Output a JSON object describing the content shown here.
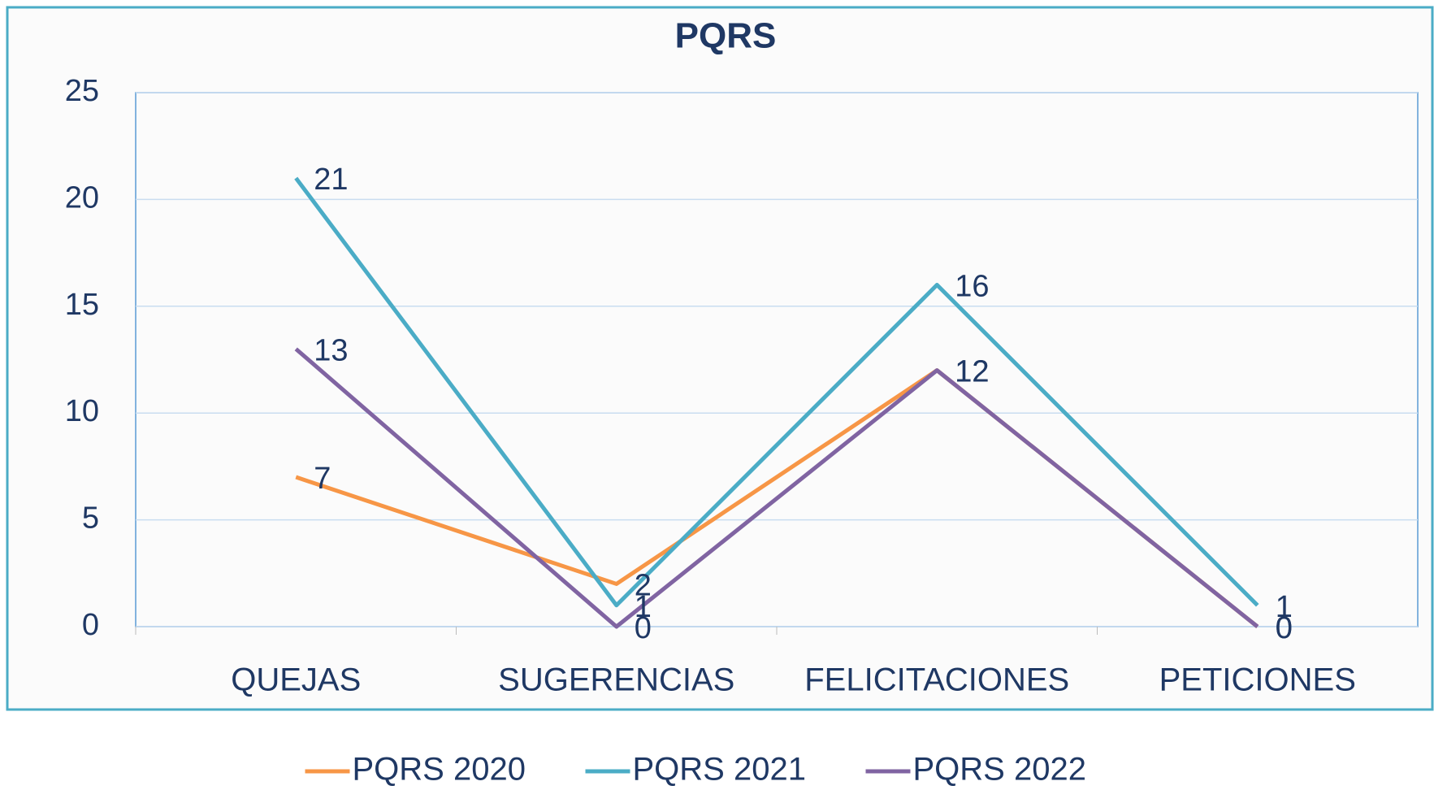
{
  "chart_data": {
    "type": "line",
    "title": "PQRS",
    "categories": [
      "QUEJAS",
      "SUGERENCIAS",
      "FELICITACIONES",
      "PETICIONES"
    ],
    "series": [
      {
        "name": "PQRS 2020",
        "color": "#f79646",
        "values": [
          7,
          2,
          12,
          0
        ]
      },
      {
        "name": "PQRS 2021",
        "color": "#4bacc6",
        "values": [
          21,
          1,
          16,
          1
        ]
      },
      {
        "name": "PQRS 2022",
        "color": "#8064a2",
        "values": [
          13,
          0,
          12,
          0
        ]
      }
    ],
    "ylim": [
      0,
      25
    ],
    "yticks": [
      0,
      5,
      10,
      15,
      20,
      25
    ],
    "grid": true,
    "legend": "bottom"
  }
}
